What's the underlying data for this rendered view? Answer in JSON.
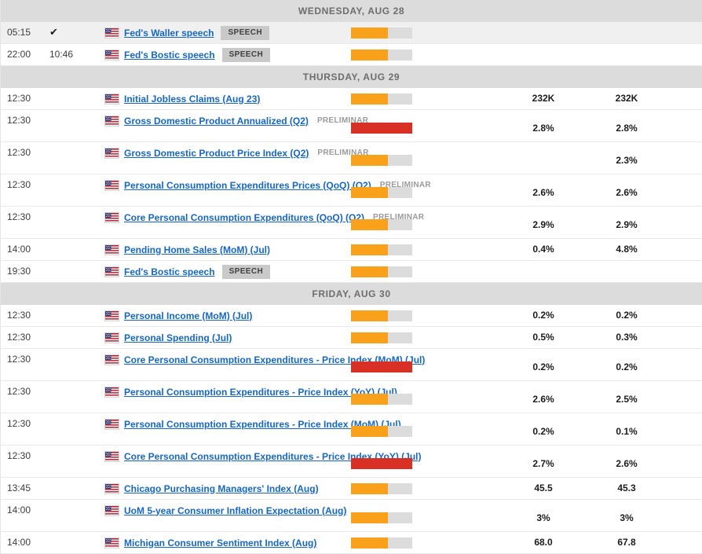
{
  "calendar": {
    "colors": {
      "high": "#D93025",
      "medium": "#F9A11B",
      "track": "#DCDCDC",
      "link": "#1767C2"
    },
    "icons": {
      "checkmark": "✔",
      "flag": "us-flag"
    },
    "days": [
      {
        "label": "WEDNESDAY, AUG 28",
        "events": [
          {
            "time": "05:15",
            "time2": "",
            "checked": true,
            "country": "US",
            "name": "Fed's Waller speech",
            "badge": "SPEECH",
            "note": "",
            "volatility": "medium",
            "bar_fill_pct": 60,
            "values": [
              "",
              ""
            ],
            "two_line": false,
            "highlighted": true
          },
          {
            "time": "22:00",
            "time2": "10:46",
            "checked": false,
            "country": "US",
            "name": "Fed's Bostic speech",
            "badge": "SPEECH",
            "note": "",
            "volatility": "medium",
            "bar_fill_pct": 60,
            "values": [
              "",
              ""
            ],
            "two_line": false,
            "highlighted": false
          }
        ]
      },
      {
        "label": "THURSDAY, AUG 29",
        "events": [
          {
            "time": "12:30",
            "time2": "",
            "checked": false,
            "country": "US",
            "name": "Initial Jobless Claims (Aug 23)",
            "badge": "",
            "note": "",
            "volatility": "medium",
            "bar_fill_pct": 60,
            "values": [
              "232K",
              "232K"
            ],
            "two_line": false,
            "highlighted": false
          },
          {
            "time": "12:30",
            "time2": "",
            "checked": false,
            "country": "US",
            "name": "Gross Domestic Product Annualized (Q2)",
            "badge": "",
            "note": "PRELIMINAR",
            "volatility": "high",
            "bar_fill_pct": 100,
            "values": [
              "2.8%",
              "2.8%"
            ],
            "two_line": true,
            "highlighted": false
          },
          {
            "time": "12:30",
            "time2": "",
            "checked": false,
            "country": "US",
            "name": "Gross Domestic Product Price Index (Q2)",
            "badge": "",
            "note": "PRELIMINAR",
            "volatility": "medium",
            "bar_fill_pct": 60,
            "values": [
              "",
              "2.3%"
            ],
            "two_line": true,
            "highlighted": false
          },
          {
            "time": "12:30",
            "time2": "",
            "checked": false,
            "country": "US",
            "name": "Personal Consumption Expenditures Prices (QoQ) (Q2)",
            "badge": "",
            "note": "PRELIMINAR",
            "volatility": "medium",
            "bar_fill_pct": 60,
            "values": [
              "2.6%",
              "2.6%"
            ],
            "two_line": true,
            "highlighted": false
          },
          {
            "time": "12:30",
            "time2": "",
            "checked": false,
            "country": "US",
            "name": "Core Personal Consumption Expenditures (QoQ) (Q2)",
            "badge": "",
            "note": "PRELIMINAR",
            "volatility": "medium",
            "bar_fill_pct": 60,
            "values": [
              "2.9%",
              "2.9%"
            ],
            "two_line": true,
            "highlighted": false
          },
          {
            "time": "14:00",
            "time2": "",
            "checked": false,
            "country": "US",
            "name": "Pending Home Sales (MoM) (Jul)",
            "badge": "",
            "note": "",
            "volatility": "medium",
            "bar_fill_pct": 60,
            "values": [
              "0.4%",
              "4.8%"
            ],
            "two_line": false,
            "highlighted": false
          },
          {
            "time": "19:30",
            "time2": "",
            "checked": false,
            "country": "US",
            "name": "Fed's Bostic speech",
            "badge": "SPEECH",
            "note": "",
            "volatility": "medium",
            "bar_fill_pct": 60,
            "values": [
              "",
              ""
            ],
            "two_line": false,
            "highlighted": false
          }
        ]
      },
      {
        "label": "FRIDAY, AUG 30",
        "events": [
          {
            "time": "12:30",
            "time2": "",
            "checked": false,
            "country": "US",
            "name": "Personal Income (MoM) (Jul)",
            "badge": "",
            "note": "",
            "volatility": "medium",
            "bar_fill_pct": 60,
            "values": [
              "0.2%",
              "0.2%"
            ],
            "two_line": false,
            "highlighted": false
          },
          {
            "time": "12:30",
            "time2": "",
            "checked": false,
            "country": "US",
            "name": "Personal Spending (Jul)",
            "badge": "",
            "note": "",
            "volatility": "medium",
            "bar_fill_pct": 60,
            "values": [
              "0.5%",
              "0.3%"
            ],
            "two_line": false,
            "highlighted": false
          },
          {
            "time": "12:30",
            "time2": "",
            "checked": false,
            "country": "US",
            "name": "Core Personal Consumption Expenditures - Price Index (MoM) (Jul)",
            "badge": "",
            "note": "",
            "volatility": "high",
            "bar_fill_pct": 100,
            "values": [
              "0.2%",
              "0.2%"
            ],
            "two_line": true,
            "highlighted": false
          },
          {
            "time": "12:30",
            "time2": "",
            "checked": false,
            "country": "US",
            "name": "Personal Consumption Expenditures - Price Index (YoY) (Jul)",
            "badge": "",
            "note": "",
            "volatility": "medium",
            "bar_fill_pct": 60,
            "values": [
              "2.6%",
              "2.5%"
            ],
            "two_line": true,
            "highlighted": false
          },
          {
            "time": "12:30",
            "time2": "",
            "checked": false,
            "country": "US",
            "name": "Personal Consumption Expenditures - Price Index (MoM) (Jul)",
            "badge": "",
            "note": "",
            "volatility": "medium",
            "bar_fill_pct": 60,
            "values": [
              "0.2%",
              "0.1%"
            ],
            "two_line": true,
            "highlighted": false
          },
          {
            "time": "12:30",
            "time2": "",
            "checked": false,
            "country": "US",
            "name": "Core Personal Consumption Expenditures - Price Index (YoY) (Jul)",
            "badge": "",
            "note": "",
            "volatility": "high",
            "bar_fill_pct": 100,
            "values": [
              "2.7%",
              "2.6%"
            ],
            "two_line": true,
            "highlighted": false
          },
          {
            "time": "13:45",
            "time2": "",
            "checked": false,
            "country": "US",
            "name": "Chicago Purchasing Managers' Index (Aug)",
            "badge": "",
            "note": "",
            "volatility": "medium",
            "bar_fill_pct": 60,
            "values": [
              "45.5",
              "45.3"
            ],
            "two_line": false,
            "highlighted": false
          },
          {
            "time": "14:00",
            "time2": "",
            "checked": false,
            "country": "US",
            "name": "UoM 5-year Consumer Inflation Expectation (Aug)",
            "badge": "",
            "note": "",
            "volatility": "medium",
            "bar_fill_pct": 60,
            "values": [
              "3%",
              "3%"
            ],
            "two_line": true,
            "highlighted": false
          },
          {
            "time": "14:00",
            "time2": "",
            "checked": false,
            "country": "US",
            "name": "Michigan Consumer Sentiment Index (Aug)",
            "badge": "",
            "note": "",
            "volatility": "medium",
            "bar_fill_pct": 60,
            "values": [
              "68.0",
              "67.8"
            ],
            "two_line": false,
            "highlighted": false
          }
        ]
      }
    ]
  }
}
